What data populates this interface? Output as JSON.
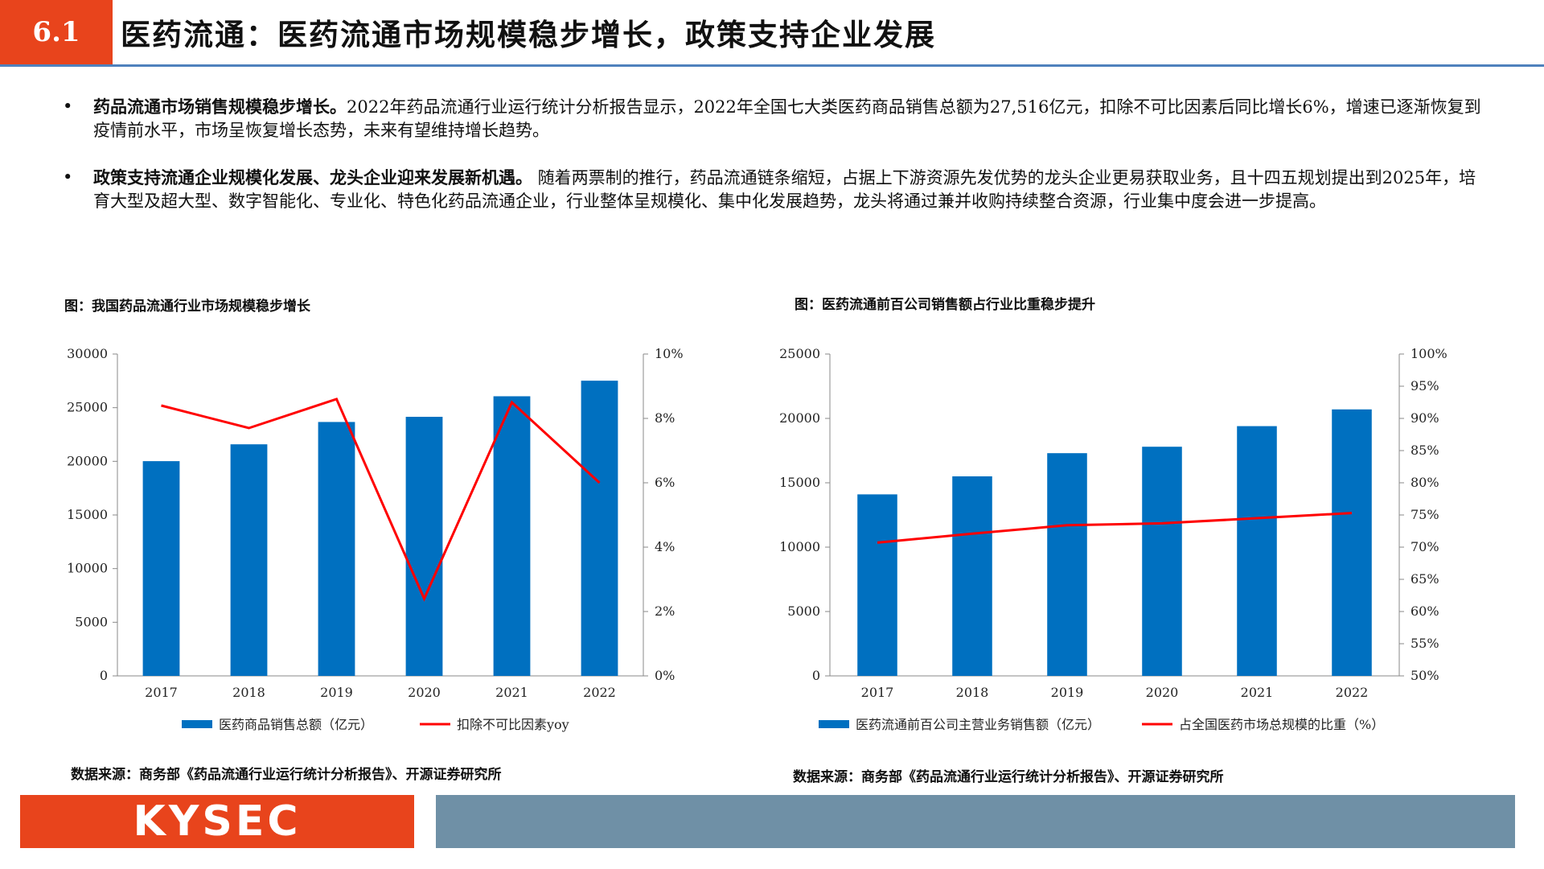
{
  "header": {
    "section": "6.1",
    "title": "医药流通：医药流通市场规模稳步增长，政策支持企业发展"
  },
  "bullets": [
    {
      "marker": "•",
      "bold": "药品流通市场销售规模稳步增长。",
      "text": "2022年药品流通行业运行统计分析报告显示，2022年全国七大类医药商品销售总额为27,516亿元，扣除不可比因素后同比增长6%，增速已逐渐恢复到疫情前水平，市场呈恢复增长态势，未来有望维持增长趋势。"
    },
    {
      "marker": "•",
      "bold": "政策支持流通企业规模化发展、龙头企业迎来发展新机遇。",
      "text": " 随着两票制的推行，药品流通链条缩短，占据上下游资源先发优势的龙头企业更易获取业务，且十四五规划提出到2025年，培育大型及超大型、数字智能化、专业化、特色化药品流通企业，行业整体呈规模化、集中化发展趋势，龙头将通过兼并收购持续整合资源，行业集中度会进一步提高。"
    }
  ],
  "colors": {
    "accent": "#e8441c",
    "bar": "#0070c0",
    "line": "#ff0000",
    "rule": "#4f81bd",
    "footer_bar": "#6f90a6"
  },
  "chart_data": [
    {
      "type": "bar",
      "title": "图：我国药品流通行业市场规模稳步增长",
      "categories": [
        "2017",
        "2018",
        "2019",
        "2020",
        "2021",
        "2022"
      ],
      "series": [
        {
          "name": "医药商品销售总额（亿元）",
          "type": "bar",
          "axis": "left",
          "values": [
            20016,
            21586,
            23667,
            24149,
            26064,
            27516
          ]
        },
        {
          "name": "扣除不可比因素yoy",
          "type": "line",
          "axis": "right",
          "values": [
            8.4,
            7.7,
            8.6,
            2.4,
            8.5,
            6.0
          ]
        }
      ],
      "y_left": {
        "min": 0,
        "max": 30000,
        "ticks": [
          0,
          5000,
          10000,
          15000,
          20000,
          25000,
          30000
        ]
      },
      "y_right": {
        "min": 0,
        "max": 10,
        "ticks": [
          0,
          2,
          4,
          6,
          8,
          10
        ],
        "tick_labels": [
          "0%",
          "2%",
          "4%",
          "6%",
          "8%",
          "10%"
        ]
      },
      "legend": "bottom",
      "grid": false,
      "source": "数据来源：商务部《药品流通行业运行统计分析报告》、开源证券研究所"
    },
    {
      "type": "bar",
      "title": "图：医药流通前百公司销售额占行业比重稳步提升",
      "categories": [
        "2017",
        "2018",
        "2019",
        "2020",
        "2021",
        "2022"
      ],
      "series": [
        {
          "name": "医药流通前百公司主营业务销售额（亿元）",
          "type": "bar",
          "axis": "left",
          "values": [
            14100,
            15500,
            17300,
            17800,
            19400,
            20700
          ]
        },
        {
          "name": "占全国医药市场总规模的比重（%）",
          "type": "line",
          "axis": "right",
          "values": [
            70.7,
            72.1,
            73.4,
            73.7,
            74.5,
            75.3
          ]
        }
      ],
      "y_left": {
        "min": 0,
        "max": 25000,
        "ticks": [
          0,
          5000,
          10000,
          15000,
          20000,
          25000
        ]
      },
      "y_right": {
        "min": 50,
        "max": 100,
        "ticks": [
          50,
          55,
          60,
          65,
          70,
          75,
          80,
          85,
          90,
          95,
          100
        ],
        "tick_labels": [
          "50%",
          "55%",
          "60%",
          "65%",
          "70%",
          "75%",
          "80%",
          "85%",
          "90%",
          "95%",
          "100%"
        ]
      },
      "legend": "bottom",
      "grid": false,
      "source": "数据来源：商务部《药品流通行业运行统计分析报告》、开源证券研究所"
    }
  ],
  "footer": {
    "logo": "KYSEC"
  }
}
